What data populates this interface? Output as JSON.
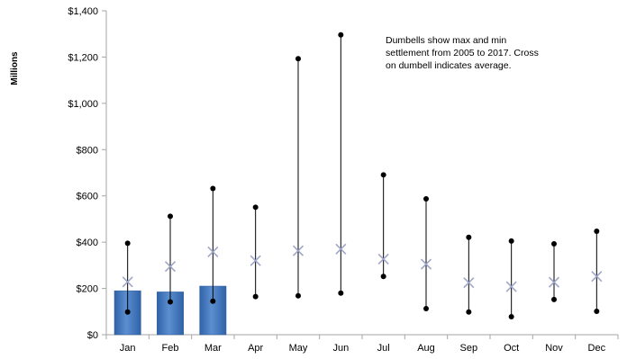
{
  "chart_data": {
    "type": "bar",
    "title": "",
    "xlabel": "",
    "ylabel": "Millions",
    "ylim": [
      0,
      1400
    ],
    "yticks": [
      0,
      200,
      400,
      600,
      800,
      1000,
      1200,
      1400
    ],
    "ytick_labels": [
      "$0",
      "$200",
      "$400",
      "$600",
      "$800",
      "$1,000",
      "$1,200",
      "$1,400"
    ],
    "categories": [
      "Jan",
      "Feb",
      "Mar",
      "Apr",
      "May",
      "Jun",
      "Jul",
      "Aug",
      "Sep",
      "Oct",
      "Nov",
      "Dec"
    ],
    "grid": false,
    "legend": "none",
    "bar_values": [
      190,
      185,
      210,
      null,
      null,
      null,
      null,
      null,
      null,
      null,
      null,
      null
    ],
    "dumbbell": {
      "max": [
        395,
        512,
        632,
        551,
        1193,
        1296,
        691,
        587,
        421,
        405,
        393,
        447
      ],
      "min": [
        98,
        142,
        145,
        165,
        168,
        180,
        252,
        113,
        98,
        78,
        152,
        101
      ],
      "average": [
        228,
        295,
        358,
        320,
        363,
        370,
        327,
        305,
        225,
        208,
        227,
        252
      ]
    },
    "annotation_lines": [
      "Dumbells show max and min",
      "settlement from 2005 to 2017.  Cross",
      "on dumbell indicates average."
    ],
    "colors": {
      "bar": "#4a7fc4",
      "bar_edge": "#2c5a98",
      "average_marker": "#9fa6c7",
      "dumbbell": "#000000",
      "axis": "#a6a6a6"
    }
  }
}
